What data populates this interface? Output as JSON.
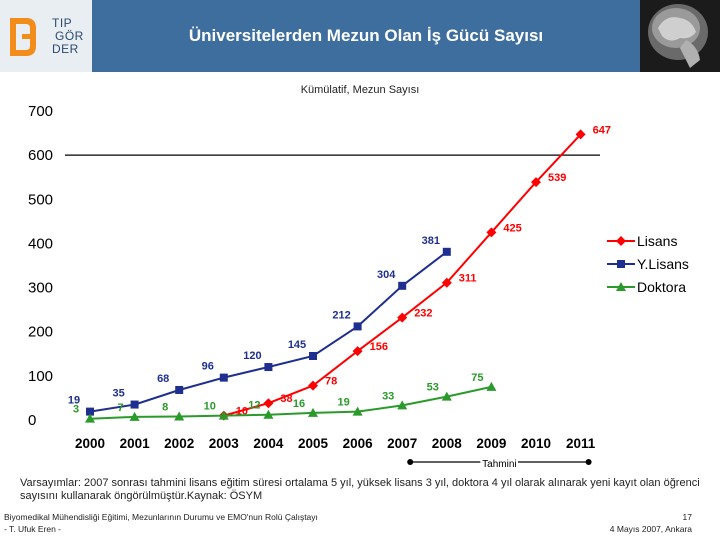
{
  "header": {
    "logo_lines": [
      "TIP",
      "GÖR",
      "DER"
    ],
    "title": "Üniversitelerden Mezun Olan İş Gücü Sayısı"
  },
  "colors": {
    "header_bg": "#3e6e9e",
    "lisans": "#ff0000",
    "ylisans": "#1f2f8f",
    "doktora": "#2a9a2a",
    "logo_accent": "#f28c1b"
  },
  "chart_data": {
    "type": "line",
    "title": "Kümülatif, Mezun Sayısı",
    "categories": [
      "2000",
      "2001",
      "2002",
      "2003",
      "2004",
      "2005",
      "2006",
      "2007",
      "2008",
      "2009",
      "2010",
      "2011"
    ],
    "ylim": [
      0,
      700
    ],
    "yticks": [
      0,
      100,
      200,
      300,
      400,
      500,
      600,
      700
    ],
    "series": [
      {
        "name": "Lisans",
        "marker": "diamond",
        "color": "#ff0000",
        "values": [
          null,
          null,
          null,
          10,
          38,
          78,
          156,
          232,
          311,
          425,
          539,
          647
        ],
        "labels": [
          "",
          "",
          "",
          "10",
          "38",
          "78",
          "156",
          "232",
          "311",
          "425",
          "539",
          "647"
        ]
      },
      {
        "name": "Y.Lisans",
        "marker": "square",
        "color": "#1f2f8f",
        "values": [
          19,
          35,
          68,
          96,
          120,
          145,
          212,
          304,
          381,
          null,
          null,
          null
        ],
        "labels": [
          "19",
          "35",
          "68",
          "96",
          "120",
          "145",
          "212",
          "304",
          "381",
          "",
          "",
          ""
        ]
      },
      {
        "name": "Doktora",
        "marker": "triangle",
        "color": "#2a9a2a",
        "values": [
          3,
          7,
          8,
          10,
          12,
          16,
          19,
          33,
          53,
          75,
          null,
          null
        ],
        "labels": [
          "3",
          "7",
          "8",
          "10",
          "12",
          "16",
          "19",
          "33",
          "53",
          "75",
          "",
          ""
        ]
      }
    ],
    "legend": [
      "Lisans",
      "Y.Lisans",
      "Doktora"
    ],
    "legend_position": "right",
    "projection_label": "Tahmini",
    "projection_range": [
      "2007",
      "2011"
    ]
  },
  "note": "Varsayımlar: 2007 sonrası tahmini lisans eğitim süresi ortalama 5 yıl, yüksek lisans 3 yıl, doktora 4 yıl olarak alınarak yeni kayıt olan öğrenci sayısını kullanarak öngörülmüştür.Kaynak: ÖSYM",
  "footer": {
    "left_line1": "Biyomedikal Mühendisliği Eğitimi, Mezunlarının Durumu ve EMO'nun Rolü Çalıştayı",
    "left_line2": "- T. Ufuk Eren -",
    "page_number": "17",
    "date": "4 Mayıs 2007, Ankara"
  }
}
